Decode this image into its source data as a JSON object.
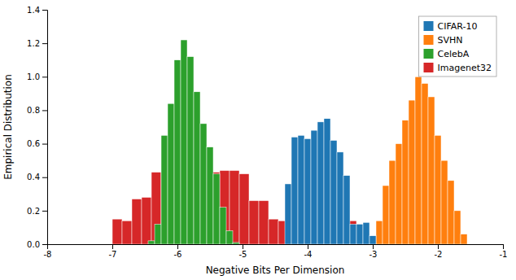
{
  "chart_data": {
    "type": "histogram",
    "xlabel": "Negative Bits Per Dimension",
    "ylabel": "Empirical Distribution",
    "xlim": [
      -8,
      -1
    ],
    "ylim": [
      0,
      1.4
    ],
    "xticks": [
      -8,
      -7,
      -6,
      -5,
      -4,
      -3,
      -2,
      -1
    ],
    "yticks": [
      {
        "value": 0,
        "label": "0.0"
      },
      0.2,
      0.4,
      0.6,
      0.8,
      {
        "value": 1,
        "label": "1.0"
      },
      1.2,
      1.4
    ],
    "grid": false,
    "legend": "upper right",
    "series": [
      {
        "name": "CIFAR-10",
        "bins": [
          -4.35,
          -4.25,
          -4.15,
          -4.05,
          -3.95,
          -3.85,
          -3.75,
          -3.65,
          -3.55,
          -3.45,
          -3.35,
          -3.25,
          -3.15,
          -3.05,
          -2.95
        ],
        "values": [
          0.36,
          0.64,
          0.65,
          0.63,
          0.68,
          0.73,
          0.75,
          0.62,
          0.55,
          0.41,
          0.12,
          0.12,
          0.13,
          0.05
        ]
      },
      {
        "name": "SVHN",
        "bins": [
          -2.95,
          -2.85,
          -2.75,
          -2.65,
          -2.55,
          -2.45,
          -2.35,
          -2.25,
          -2.15,
          -2.05,
          -1.95,
          -1.85,
          -1.75,
          -1.65,
          -1.55
        ],
        "values": [
          0.14,
          0.35,
          0.5,
          0.6,
          0.74,
          0.86,
          1.0,
          0.96,
          0.88,
          0.65,
          0.5,
          0.38,
          0.2,
          0.06
        ]
      },
      {
        "name": "CelebA",
        "bins": [
          -6.45,
          -6.35,
          -6.25,
          -6.15,
          -6.05,
          -5.95,
          -5.85,
          -5.75,
          -5.65,
          -5.55,
          -5.45,
          -5.35,
          -5.25,
          -5.15,
          -5.05
        ],
        "values": [
          0.02,
          0.12,
          0.65,
          0.84,
          1.1,
          1.22,
          1.12,
          0.91,
          0.72,
          0.58,
          0.42,
          0.22,
          0.08,
          0.01
        ]
      },
      {
        "name": "Imagenet32",
        "bins": [
          -7.0,
          -6.85,
          -6.7,
          -6.55,
          -6.4,
          -6.25,
          -6.1,
          -5.95,
          -5.8,
          -5.65,
          -5.5,
          -5.35,
          -5.2,
          -5.05,
          -4.9,
          -4.75,
          -4.6,
          -4.45,
          -4.3,
          -4.15,
          -4.0,
          -3.85,
          -3.7,
          -3.55,
          -3.4,
          -3.25,
          -3.1
        ],
        "values": [
          0.15,
          0.14,
          0.27,
          0.28,
          0.43,
          0.56,
          0.43,
          0.43,
          0.57,
          0.44,
          0.43,
          0.44,
          0.44,
          0.42,
          0.26,
          0.26,
          0.15,
          0.14,
          0.13,
          0.13,
          0.07,
          0.14,
          0.14,
          0.14,
          0.14,
          0.03
        ]
      }
    ]
  }
}
